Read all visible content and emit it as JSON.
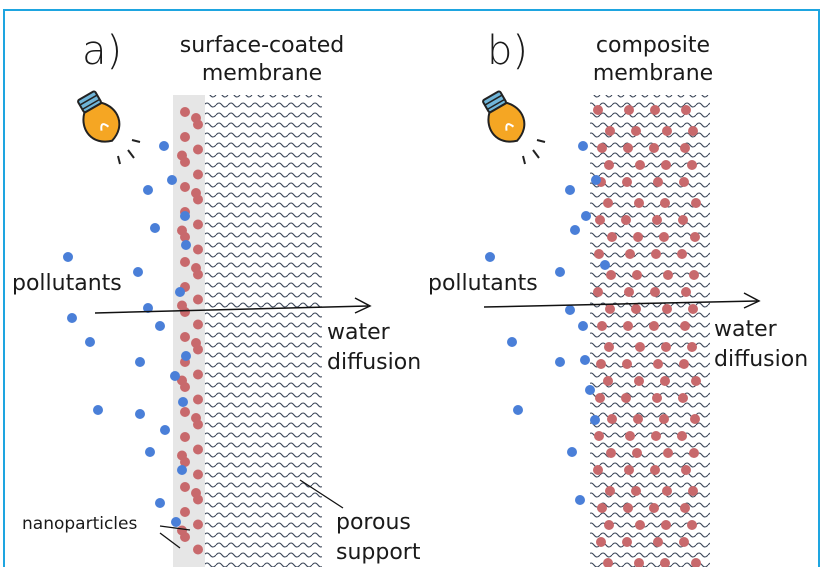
{
  "panel_a": {
    "letter": "a)",
    "title_line1": "surface-coated",
    "title_line2": "membrane",
    "pollutants": "pollutants",
    "flow_line1": "water",
    "flow_line2": "diffusion",
    "nanoparticles": "nanoparticles",
    "support_line1": "porous",
    "support_line2": "support"
  },
  "panel_b": {
    "letter": "b)",
    "title_line1": "composite",
    "title_line2": "membrane",
    "pollutants": "pollutants",
    "flow_line1": "water",
    "flow_line2": "diffusion"
  },
  "colors": {
    "frame": "#1ea5e0",
    "pollutant": "#4a7fd8",
    "nanoparticle": "#c8696c",
    "coating": "#e6e6e6",
    "wave": "#404a5c",
    "bulb": "#f5a623",
    "bulb_cap": "#6fb5d9"
  },
  "icons": [
    "lightbulb-icon",
    "arrow-right-icon"
  ]
}
